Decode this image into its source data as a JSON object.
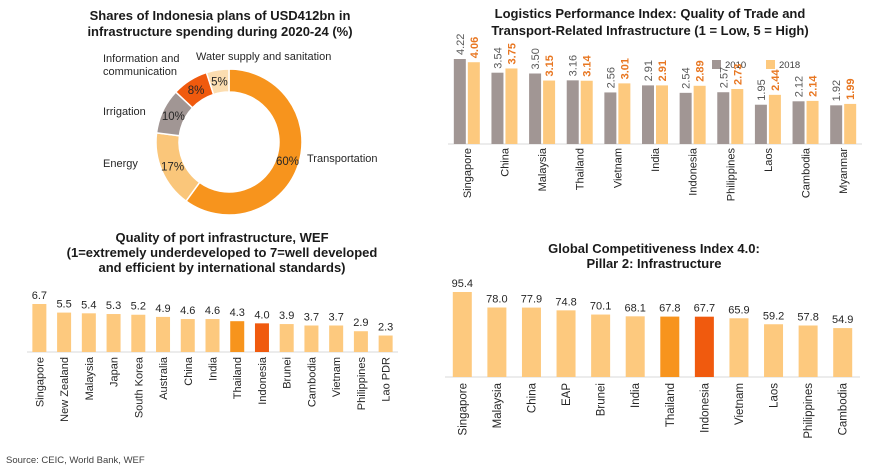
{
  "source": "Source: CEIC, World Bank, WEF",
  "chart_data": [
    {
      "type": "pie",
      "subtype": "donut",
      "title": "Shares of Indonesia plans of USD412bn in infrastructure spending during 2020-24 (%)",
      "title_lines": [
        "Shares of Indonesia plans of USD412bn in",
        "infrastructure spending during 2020-24 (%)"
      ],
      "slices": [
        {
          "label": "Transportation",
          "value": 60,
          "display": "60%",
          "color": "#F7941D"
        },
        {
          "label": "Energy",
          "value": 17,
          "display": "17%",
          "color": "#FAC67A"
        },
        {
          "label": "Irrigation",
          "value": 10,
          "display": "10%",
          "color": "#A19694"
        },
        {
          "label": "Information and communication",
          "label_lines": [
            "Information and",
            "communication"
          ],
          "value": 8,
          "display": "8%",
          "color": "#F05A0E"
        },
        {
          "label": "Water supply and sanitation",
          "value": 5,
          "display": "5%",
          "color": "#FCDDB0"
        }
      ]
    },
    {
      "type": "bar",
      "title": "Logistics Performance Index: Quality of Trade and Transport-Related Infrastructure (1 = Low, 5 = High)",
      "title_lines": [
        "Logistics Performance Index: Quality of Trade and",
        "Transport-Related Infrastructure (1 = Low, 5 = High)"
      ],
      "categories": [
        "Singapore",
        "China",
        "Malaysia",
        "Thailand",
        "Vietnam",
        "India",
        "Indonesia",
        "Philippines",
        "Laos",
        "Cambodia",
        "Myanmar"
      ],
      "series": [
        {
          "name": "2010",
          "values": [
            4.22,
            3.54,
            3.5,
            3.16,
            2.56,
            2.91,
            2.54,
            2.57,
            1.95,
            2.12,
            1.92
          ],
          "labels": [
            "4.22",
            "3.54",
            "3.50",
            "3.16",
            "2.56",
            "2.91",
            "2.54",
            "2.57",
            "1.95",
            "2.12",
            "1.92"
          ],
          "color": "#A19694",
          "label_color": "#595959"
        },
        {
          "name": "2018",
          "values": [
            4.06,
            3.75,
            3.15,
            3.14,
            3.01,
            2.91,
            2.89,
            2.73,
            2.44,
            2.14,
            1.99
          ],
          "labels": [
            "4.06",
            "3.75",
            "3.15",
            "3.14",
            "3.01",
            "2.91",
            "2.89",
            "2.73",
            "2.44",
            "2.14",
            "1.99"
          ],
          "color": "#FDC97E",
          "label_color": "#E87722"
        }
      ],
      "ylim": [
        0,
        4.5
      ],
      "legend": "top-right"
    },
    {
      "type": "bar",
      "title": "Quality of port infrastructure, WEF (1=extremely underdeveloped to 7=well developed and efficient by international standards)",
      "title_lines": [
        "Quality of port infrastructure, WEF",
        "(1=extremely underdeveloped to 7=well developed",
        "and efficient by international standards)"
      ],
      "categories": [
        "Singapore",
        "New Zealand",
        "Malaysia",
        "Japan",
        "South Korea",
        "Australia",
        "China",
        "India",
        "Thailand",
        "Indonesia",
        "Brunei",
        "Cambodia",
        "Vietnam",
        "Philippines",
        "Lao PDR"
      ],
      "values": [
        6.7,
        5.5,
        5.4,
        5.3,
        5.2,
        4.9,
        4.6,
        4.6,
        4.3,
        4.0,
        3.9,
        3.7,
        3.7,
        2.9,
        2.3
      ],
      "labels": [
        "6.7",
        "5.5",
        "5.4",
        "5.3",
        "5.2",
        "4.9",
        "4.6",
        "4.6",
        "4.3",
        "4.0",
        "3.9",
        "3.7",
        "3.7",
        "2.9",
        "2.3"
      ],
      "colors": [
        "#FDC97E",
        "#FDC97E",
        "#FDC97E",
        "#FDC97E",
        "#FDC97E",
        "#FDC97E",
        "#FDC97E",
        "#FDC97E",
        "#F7941D",
        "#F05A0E",
        "#FDC97E",
        "#FDC97E",
        "#FDC97E",
        "#FDC97E",
        "#FDC97E"
      ],
      "ylim": [
        0,
        7
      ]
    },
    {
      "type": "bar",
      "title": "Global Competitiveness Index 4.0: Pillar 2: Infrastructure",
      "title_lines": [
        "Global Competitiveness Index 4.0:",
        "Pillar 2: Infrastructure"
      ],
      "categories": [
        "Singapore",
        "Malaysia",
        "China",
        "EAP",
        "Brunei",
        "India",
        "Thailand",
        "Indonesia",
        "Vietnam",
        "Laos",
        "Philippines",
        "Cambodia"
      ],
      "values": [
        95.4,
        78.0,
        77.9,
        74.8,
        70.1,
        68.1,
        67.8,
        67.7,
        65.9,
        59.2,
        57.8,
        54.9
      ],
      "labels": [
        "95.4",
        "78.0",
        "77.9",
        "74.8",
        "70.1",
        "68.1",
        "67.8",
        "67.7",
        "65.9",
        "59.2",
        "57.8",
        "54.9"
      ],
      "colors": [
        "#FDC97E",
        "#FDC97E",
        "#FDC97E",
        "#FDC97E",
        "#FDC97E",
        "#FDC97E",
        "#F7941D",
        "#F05A0E",
        "#FDC97E",
        "#FDC97E",
        "#FDC97E",
        "#FDC97E"
      ],
      "ylim": [
        0,
        100
      ]
    }
  ]
}
